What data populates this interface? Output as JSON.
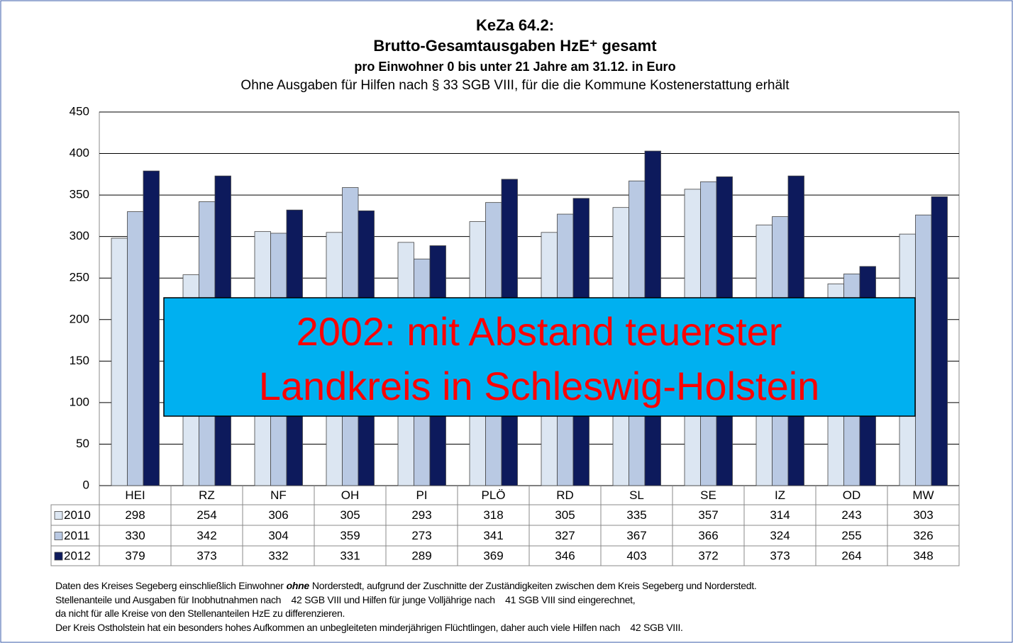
{
  "chart_data": {
    "type": "bar",
    "title": "KeZa 64.2:",
    "title_line2": "Brutto-Gesamtausgaben HzE⁺ gesamt",
    "subtitle": "pro Einwohner 0 bis unter 21 Jahre am 31.12. in Euro",
    "subtitle2": "Ohne Ausgaben für Hilfen nach § 33 SGB VIII,  für die die Kommune Kostenerstattung erhält",
    "categories": [
      "HEI",
      "RZ",
      "NF",
      "OH",
      "PI",
      "PLÖ",
      "RD",
      "SL",
      "SE",
      "IZ",
      "OD",
      "MW"
    ],
    "series": [
      {
        "name": "2010",
        "color": "#dce6f2",
        "values": [
          298,
          254,
          306,
          305,
          293,
          318,
          305,
          335,
          357,
          314,
          243,
          303
        ]
      },
      {
        "name": "2011",
        "color": "#b9c9e3",
        "values": [
          330,
          342,
          304,
          359,
          273,
          341,
          327,
          367,
          366,
          324,
          255,
          326
        ]
      },
      {
        "name": "2012",
        "color": "#0d1a5c",
        "values": [
          379,
          373,
          332,
          331,
          289,
          369,
          346,
          403,
          372,
          373,
          264,
          348
        ]
      }
    ],
    "ylim": [
      0,
      450
    ],
    "yticks": [
      0,
      50,
      100,
      150,
      200,
      250,
      300,
      350,
      400,
      450
    ],
    "grid": true,
    "annotation": [
      "2002: mit Abstand teuerster",
      "Landkreis in Schleswig-Holstein"
    ],
    "notes": [
      [
        "Daten des Kreises Segeberg einschließlich Einwohner",
        "ohne",
        "Norderstedt, aufgrund der Zuschnitte der Zuständigkeiten zwischen dem Kreis Segeberg und Norderstedt."
      ],
      "Stellenanteile und Ausgaben für Inobhutnahmen nach    42 SGB VIII und Hilfen für junge Volljährige nach    41 SGB VIII sind eingerechnet,",
      "da nicht für alle Kreise von den Stellenanteilen HzE zu differenzieren.",
      "Der Kreis Ostholstein hat ein besonders hohes Aufkommen an unbegleiteten minderjährigen Flüchtlingen, daher auch viele Hilfen nach    42 SGB VIII."
    ]
  }
}
